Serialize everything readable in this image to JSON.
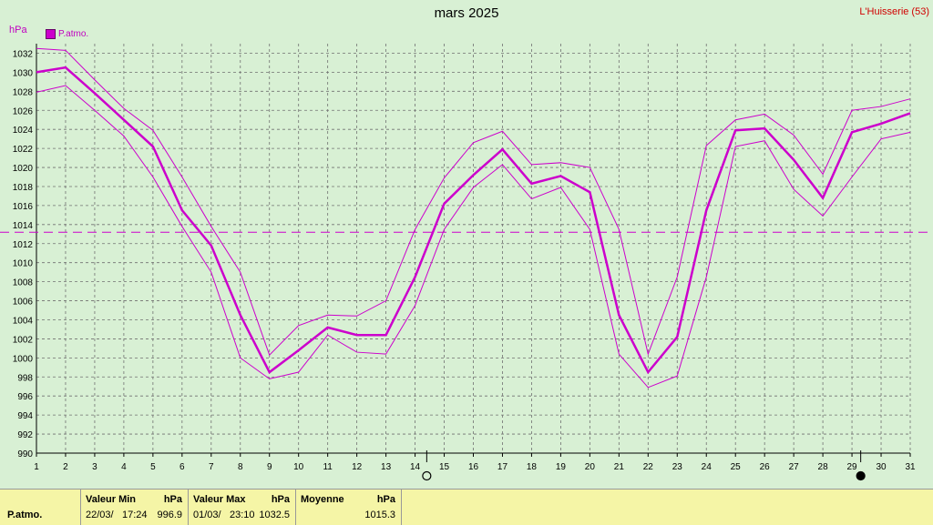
{
  "header": {
    "title": "mars 2025",
    "station": "L'Huisserie (53)",
    "unit": "hPa",
    "legend_label": "P.atmo."
  },
  "chart_data": {
    "type": "line",
    "title": "mars 2025",
    "ylabel": "hPa",
    "xlabel": "",
    "x": [
      1,
      2,
      3,
      4,
      5,
      6,
      7,
      8,
      9,
      10,
      11,
      12,
      13,
      14,
      15,
      16,
      17,
      18,
      19,
      20,
      21,
      22,
      23,
      24,
      25,
      26,
      27,
      28,
      29,
      30,
      31
    ],
    "xlim": [
      1,
      31
    ],
    "ylim": [
      990,
      1033
    ],
    "y_ticks": [
      990,
      992,
      994,
      996,
      998,
      1000,
      1002,
      1004,
      1006,
      1008,
      1010,
      1012,
      1014,
      1016,
      1018,
      1020,
      1022,
      1024,
      1026,
      1028,
      1030,
      1032
    ],
    "grid": true,
    "average_line": 1013.2,
    "moon_markers": [
      {
        "x": 14.4,
        "phase": "full"
      },
      {
        "x": 29.3,
        "phase": "new"
      }
    ],
    "colors": {
      "series": "#cc00cc",
      "background": "#d8f0d4",
      "grid": "#707070",
      "footer": "#f5f5a6",
      "station": "#d00000"
    },
    "series": [
      {
        "name": "P.atmo.",
        "role": "mean",
        "values": [
          1030.0,
          1030.5,
          1027.8,
          1025.0,
          1022.2,
          1015.5,
          1011.8,
          1004.5,
          998.5,
          1000.8,
          1003.2,
          1002.4,
          1002.4,
          1008.5,
          1016.2,
          1019.2,
          1021.9,
          1018.3,
          1019.1,
          1017.4,
          1004.5,
          998.5,
          1002.2,
          1015.5,
          1023.9,
          1024.1,
          1020.8,
          1016.8,
          1023.7,
          1024.6,
          1025.7
        ]
      },
      {
        "role": "max",
        "values": [
          1032.5,
          1032.3,
          1029.2,
          1026.2,
          1023.9,
          1019.0,
          1013.8,
          1009.0,
          1000.3,
          1003.4,
          1004.5,
          1004.4,
          1006.0,
          1013.5,
          1018.9,
          1022.6,
          1023.8,
          1020.3,
          1020.5,
          1020.0,
          1013.5,
          1000.4,
          1008.5,
          1022.3,
          1025.0,
          1025.6,
          1023.4,
          1019.3,
          1026.0,
          1026.4,
          1027.2
        ]
      },
      {
        "role": "min",
        "values": [
          1027.9,
          1028.6,
          1026.0,
          1023.3,
          1019.0,
          1013.8,
          1009.0,
          1000.0,
          997.8,
          998.5,
          1002.4,
          1000.6,
          1000.4,
          1005.5,
          1013.5,
          1017.9,
          1020.3,
          1016.7,
          1017.9,
          1013.5,
          1000.4,
          996.9,
          998.1,
          1008.5,
          1022.2,
          1022.8,
          1017.7,
          1014.9,
          1019.0,
          1023.0,
          1023.7
        ]
      }
    ]
  },
  "footer": {
    "row_label": "P.atmo.",
    "min": {
      "label": "Valeur Min",
      "unit": "hPa",
      "date": "22/03/",
      "time": "17:24",
      "value": "996.9"
    },
    "max": {
      "label": "Valeur Max",
      "unit": "hPa",
      "date": "01/03/",
      "time": "23:10",
      "value": "1032.5"
    },
    "avg": {
      "label": "Moyenne",
      "unit": "hPa",
      "value": "1015.3"
    }
  }
}
